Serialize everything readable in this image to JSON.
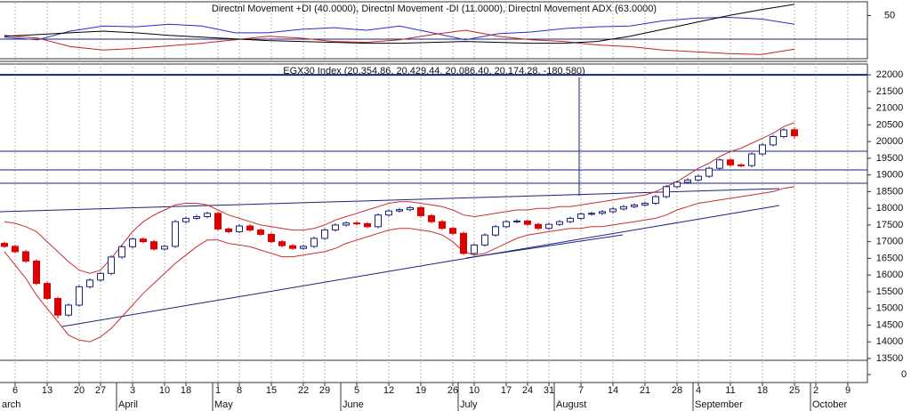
{
  "chart_data": [
    {
      "type": "line",
      "title": "Directnl Movement +DI (40.0000), Directnl Movement -DI (11.0000), Directnl Movement ADX (63.0000)",
      "ylim": [
        0,
        65
      ],
      "yticks": [
        50
      ],
      "series": [
        {
          "color": "#2b2bd0",
          "values": [
            25,
            22,
            32,
            38,
            37,
            40,
            38,
            30,
            30,
            34,
            36,
            33,
            38,
            30,
            22,
            29,
            31,
            35,
            37,
            38,
            44,
            47,
            48,
            46,
            40
          ]
        },
        {
          "color": "#c82020",
          "values": [
            27,
            24,
            14,
            10,
            12,
            15,
            18,
            22,
            26,
            24,
            20,
            19,
            22,
            28,
            33,
            26,
            22,
            20,
            16,
            14,
            10,
            8,
            6,
            5,
            11
          ]
        },
        {
          "color": "#000000",
          "values": [
            26,
            28,
            30,
            32,
            30,
            27,
            25,
            23,
            21,
            20,
            19,
            18,
            18,
            19,
            20,
            19,
            18,
            18,
            20,
            26,
            34,
            42,
            50,
            57,
            63
          ]
        }
      ]
    },
    {
      "type": "candlestick",
      "title": "EGX30 Index (20,354.86, 20,429.44, 20,086.40, 20,174.28, -180.580)",
      "categories": [
        null,
        "6",
        null,
        null,
        "13",
        null,
        null,
        "20",
        null,
        "27",
        null,
        null,
        "3",
        null,
        null,
        "10",
        null,
        "18",
        null,
        null,
        "1",
        null,
        "8",
        null,
        null,
        "15",
        null,
        null,
        "22",
        null,
        "29",
        null,
        null,
        "5",
        null,
        null,
        "12",
        null,
        null,
        "19",
        null,
        null,
        "26",
        null,
        "10",
        null,
        null,
        "17",
        null,
        "24",
        null,
        "31",
        null,
        null,
        "7",
        null,
        null,
        "14",
        null,
        null,
        "21",
        null,
        null,
        "28",
        null,
        "4",
        null,
        null,
        "11",
        null,
        null,
        "18",
        null,
        null,
        "25",
        null,
        "2",
        null,
        null,
        "9"
      ],
      "month_labels": [
        "arch",
        null,
        null,
        null,
        null,
        null,
        null,
        null,
        null,
        null,
        null,
        "April",
        null,
        null,
        null,
        null,
        null,
        null,
        null,
        null,
        "May",
        null,
        null,
        null,
        null,
        null,
        null,
        null,
        null,
        null,
        null,
        null,
        "June",
        null,
        null,
        null,
        null,
        null,
        null,
        null,
        null,
        null,
        null,
        "July",
        null,
        null,
        null,
        null,
        null,
        null,
        null,
        null,
        "August",
        null,
        null,
        null,
        null,
        null,
        null,
        null,
        null,
        null,
        null,
        null,
        null,
        "September",
        null,
        null,
        null,
        null,
        null,
        null,
        null,
        null,
        null,
        null,
        "October",
        null,
        null,
        null
      ],
      "open": [
        16950,
        16860,
        16700,
        16420,
        15750,
        15300,
        14800,
        15100,
        15650,
        15850,
        16050,
        16540,
        16850,
        17080,
        17000,
        16780,
        16860,
        17600,
        17700,
        17750,
        17850,
        17380,
        17300,
        17470,
        17350,
        17220,
        17000,
        16880,
        16800,
        16860,
        17100,
        17350,
        17500,
        17560,
        17540,
        17450,
        17800,
        17920,
        17960,
        18020,
        17780,
        17600,
        17400,
        17250,
        16650,
        16900,
        17200,
        17450,
        17600,
        17620,
        17520,
        17400,
        17520,
        17600,
        17700,
        17830,
        17850,
        17900,
        17980,
        18050,
        18100,
        18150,
        18350,
        18650,
        18780,
        18850,
        18960,
        19200,
        19450,
        19300,
        19280,
        19630,
        19900,
        20150,
        20354.86,
        null,
        null,
        null,
        null,
        null
      ],
      "high": [
        17000,
        16910,
        16750,
        16470,
        15800,
        15350,
        15150,
        15700,
        15900,
        16100,
        16590,
        16900,
        17130,
        17130,
        17050,
        16910,
        17650,
        17750,
        17800,
        17900,
        17900,
        17430,
        17520,
        17520,
        17400,
        17270,
        17050,
        16930,
        16910,
        17150,
        17400,
        17550,
        17610,
        17610,
        17590,
        17850,
        17970,
        18010,
        18070,
        18070,
        17830,
        17650,
        17450,
        17300,
        16950,
        17250,
        17500,
        17650,
        17670,
        17670,
        17570,
        17570,
        17650,
        17750,
        17880,
        17900,
        17950,
        18030,
        18100,
        18150,
        18200,
        18400,
        18700,
        18830,
        18900,
        19010,
        19250,
        19500,
        19500,
        19350,
        19680,
        19950,
        20200,
        20400,
        20429.44,
        null,
        null,
        null,
        null,
        null
      ],
      "low": [
        16810,
        16650,
        16370,
        15700,
        15250,
        14700,
        14750,
        15050,
        15600,
        15800,
        16000,
        16490,
        16800,
        16950,
        16730,
        16730,
        16810,
        17550,
        17650,
        17700,
        17330,
        17250,
        17250,
        17300,
        17170,
        16950,
        16830,
        16750,
        16750,
        16810,
        17050,
        17300,
        17450,
        17490,
        17400,
        17400,
        17750,
        17870,
        17910,
        17730,
        17550,
        17350,
        17200,
        16600,
        16600,
        16850,
        17150,
        17400,
        17550,
        17470,
        17350,
        17350,
        17470,
        17550,
        17650,
        17780,
        17800,
        17850,
        17930,
        18000,
        18050,
        18100,
        18300,
        18600,
        18730,
        18800,
        18910,
        19150,
        19250,
        19230,
        19230,
        19580,
        19850,
        20100,
        20086.4,
        null,
        null,
        null,
        null,
        null
      ],
      "close": [
        16860,
        16700,
        16420,
        15750,
        15300,
        14800,
        15100,
        15650,
        15850,
        16050,
        16540,
        16850,
        17080,
        17000,
        16780,
        16860,
        17600,
        17700,
        17750,
        17850,
        17380,
        17300,
        17470,
        17350,
        17220,
        17000,
        16880,
        16800,
        16860,
        17100,
        17350,
        17500,
        17560,
        17540,
        17450,
        17800,
        17920,
        17960,
        18020,
        17780,
        17600,
        17400,
        17250,
        16650,
        16900,
        17200,
        17450,
        17600,
        17620,
        17520,
        17400,
        17520,
        17600,
        17700,
        17830,
        17850,
        17900,
        17980,
        18050,
        18100,
        18150,
        18350,
        18650,
        18780,
        18850,
        18960,
        19200,
        19450,
        19300,
        19280,
        19630,
        19900,
        20150,
        20350,
        20174.28,
        null,
        null,
        null,
        null,
        null
      ],
      "up_color": "#ffffff",
      "down_color": "#e00000",
      "outline_color": "#1a237e",
      "bands": [
        {
          "color": "#c83030",
          "values": [
            17600,
            17550,
            17450,
            17300,
            17000,
            16700,
            16400,
            16150,
            16050,
            16150,
            16500,
            16900,
            17300,
            17600,
            17800,
            17950,
            18100,
            18150,
            18150,
            18100,
            17950,
            17800,
            17700,
            17600,
            17500,
            17450,
            17400,
            17350,
            17350,
            17400,
            17500,
            17650,
            17750,
            17850,
            17950,
            18050,
            18150,
            18200,
            18200,
            18150,
            18100,
            18050,
            17950,
            17800,
            17750,
            17800,
            17850,
            17900,
            17950,
            17950,
            18000,
            18000,
            18050,
            18050,
            18100,
            18150,
            18200,
            18250,
            18300,
            18350,
            18400,
            18500,
            18650,
            18800,
            19000,
            19200,
            19350,
            19550,
            19700,
            19800,
            19950,
            20100,
            20250,
            20450,
            20570,
            null,
            null,
            null,
            null,
            null
          ]
        },
        {
          "color": "#c83030",
          "values": [
            16700,
            16300,
            15900,
            15400,
            15000,
            14600,
            14200,
            14050,
            14000,
            14150,
            14400,
            14750,
            15100,
            15450,
            15750,
            16050,
            16350,
            16600,
            16850,
            17050,
            17050,
            16950,
            16900,
            16850,
            16750,
            16650,
            16550,
            16550,
            16600,
            16650,
            16700,
            16800,
            16950,
            17050,
            17150,
            17250,
            17350,
            17400,
            17400,
            17350,
            17300,
            17200,
            17000,
            16700,
            16600,
            16650,
            16800,
            16950,
            17100,
            17200,
            17250,
            17300,
            17350,
            17400,
            17400,
            17450,
            17450,
            17500,
            17550,
            17600,
            17650,
            17700,
            17800,
            17950,
            18050,
            18150,
            18200,
            18250,
            18300,
            18350,
            18400,
            18450,
            18500,
            18600,
            18650,
            null,
            null,
            null,
            null,
            null
          ]
        }
      ],
      "hlines": [
        22000,
        19710,
        19150,
        18750
      ],
      "ylim": [
        13446,
        22323
      ],
      "yticks": [
        13500,
        14000,
        14500,
        15000,
        15500,
        16000,
        16500,
        17000,
        17500,
        18000,
        18500,
        19000,
        19500,
        20000,
        20500,
        21000,
        21500,
        22000
      ],
      "volume_yticks": [
        0
      ]
    }
  ]
}
